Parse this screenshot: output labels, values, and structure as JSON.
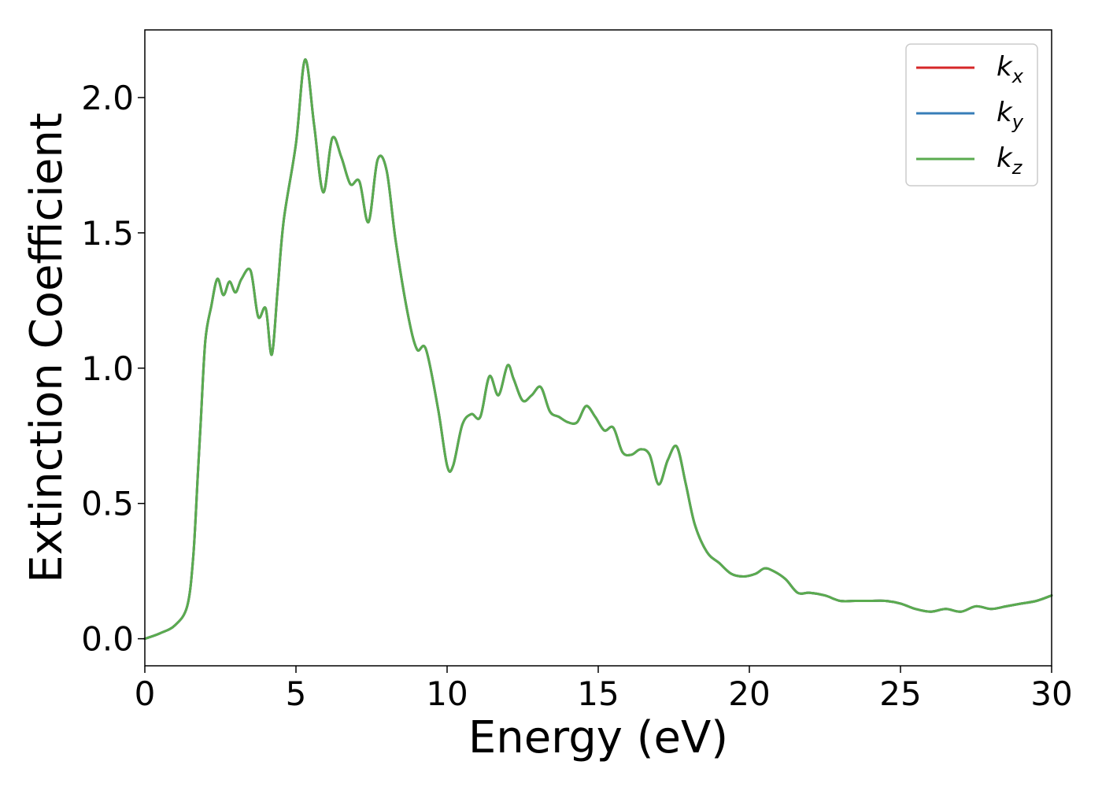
{
  "chart_data": {
    "type": "line",
    "title": "",
    "xlabel": "Energy (eV)",
    "ylabel": "Extinction Coefficient",
    "xlim": [
      0,
      30
    ],
    "ylim": [
      -0.1,
      2.25
    ],
    "xticks": [
      0,
      5,
      10,
      15,
      20,
      25,
      30
    ],
    "xtick_labels": [
      "0",
      "5",
      "10",
      "15",
      "20",
      "25",
      "30"
    ],
    "yticks": [
      0.0,
      0.5,
      1.0,
      1.5,
      2.0
    ],
    "ytick_labels": [
      "0.0",
      "0.5",
      "1.0",
      "1.5",
      "2.0"
    ],
    "grid": false,
    "legend": {
      "position": "top-right",
      "entries": [
        {
          "base": "k",
          "sub": "x",
          "color": "#d62728"
        },
        {
          "base": "k",
          "sub": "y",
          "color": "#377eb8"
        },
        {
          "base": "k",
          "sub": "z",
          "color": "#5aab4f"
        }
      ]
    },
    "x": [
      0,
      0.5,
      1.0,
      1.4,
      1.6,
      1.75,
      1.85,
      2.0,
      2.2,
      2.4,
      2.6,
      2.8,
      3.0,
      3.2,
      3.5,
      3.75,
      4.0,
      4.2,
      4.4,
      4.6,
      5.0,
      5.3,
      5.6,
      5.9,
      6.2,
      6.5,
      6.8,
      7.1,
      7.4,
      7.7,
      8.0,
      8.3,
      8.7,
      9.0,
      9.3,
      9.7,
      10.0,
      10.2,
      10.5,
      10.8,
      11.1,
      11.4,
      11.7,
      12.0,
      12.2,
      12.5,
      12.8,
      13.1,
      13.4,
      13.7,
      14.0,
      14.3,
      14.6,
      14.9,
      15.2,
      15.5,
      15.8,
      16.1,
      16.4,
      16.7,
      17.0,
      17.3,
      17.6,
      17.9,
      18.2,
      18.6,
      19.0,
      19.4,
      19.8,
      20.2,
      20.5,
      20.8,
      21.2,
      21.6,
      22.0,
      22.5,
      23.0,
      23.5,
      24.0,
      24.5,
      25.0,
      25.5,
      26.0,
      26.5,
      27.0,
      27.5,
      28.0,
      28.5,
      29.0,
      29.5,
      30.0
    ],
    "series": [
      {
        "name": "k_x",
        "values": [
          0.0,
          0.02,
          0.05,
          0.12,
          0.3,
          0.6,
          0.8,
          1.1,
          1.23,
          1.33,
          1.27,
          1.32,
          1.28,
          1.33,
          1.36,
          1.19,
          1.22,
          1.05,
          1.3,
          1.55,
          1.83,
          2.14,
          1.9,
          1.65,
          1.85,
          1.78,
          1.68,
          1.69,
          1.54,
          1.77,
          1.73,
          1.47,
          1.2,
          1.07,
          1.07,
          0.85,
          0.64,
          0.64,
          0.79,
          0.83,
          0.82,
          0.97,
          0.9,
          1.01,
          0.96,
          0.88,
          0.9,
          0.93,
          0.84,
          0.82,
          0.8,
          0.8,
          0.86,
          0.82,
          0.77,
          0.78,
          0.69,
          0.68,
          0.7,
          0.68,
          0.57,
          0.66,
          0.71,
          0.57,
          0.42,
          0.32,
          0.28,
          0.24,
          0.23,
          0.24,
          0.26,
          0.25,
          0.22,
          0.17,
          0.17,
          0.16,
          0.14,
          0.14,
          0.14,
          0.14,
          0.13,
          0.11,
          0.1,
          0.11,
          0.1,
          0.12,
          0.11,
          0.12,
          0.13,
          0.14,
          0.16
        ]
      },
      {
        "name": "k_y",
        "values": [
          0.0,
          0.02,
          0.05,
          0.12,
          0.3,
          0.6,
          0.8,
          1.1,
          1.23,
          1.33,
          1.27,
          1.32,
          1.28,
          1.33,
          1.36,
          1.19,
          1.22,
          1.05,
          1.3,
          1.55,
          1.83,
          2.14,
          1.9,
          1.65,
          1.85,
          1.78,
          1.68,
          1.69,
          1.54,
          1.77,
          1.73,
          1.47,
          1.2,
          1.07,
          1.07,
          0.85,
          0.64,
          0.64,
          0.79,
          0.83,
          0.82,
          0.97,
          0.9,
          1.01,
          0.96,
          0.88,
          0.9,
          0.93,
          0.84,
          0.82,
          0.8,
          0.8,
          0.86,
          0.82,
          0.77,
          0.78,
          0.69,
          0.68,
          0.7,
          0.68,
          0.57,
          0.66,
          0.71,
          0.57,
          0.42,
          0.32,
          0.28,
          0.24,
          0.23,
          0.24,
          0.26,
          0.25,
          0.22,
          0.17,
          0.17,
          0.16,
          0.14,
          0.14,
          0.14,
          0.14,
          0.13,
          0.11,
          0.1,
          0.11,
          0.1,
          0.12,
          0.11,
          0.12,
          0.13,
          0.14,
          0.16
        ]
      },
      {
        "name": "k_z",
        "values": [
          0.0,
          0.02,
          0.05,
          0.12,
          0.3,
          0.6,
          0.8,
          1.1,
          1.23,
          1.33,
          1.27,
          1.32,
          1.28,
          1.33,
          1.36,
          1.19,
          1.22,
          1.05,
          1.3,
          1.55,
          1.83,
          2.14,
          1.9,
          1.65,
          1.85,
          1.78,
          1.68,
          1.69,
          1.54,
          1.77,
          1.73,
          1.47,
          1.2,
          1.07,
          1.07,
          0.85,
          0.64,
          0.64,
          0.79,
          0.83,
          0.82,
          0.97,
          0.9,
          1.01,
          0.96,
          0.88,
          0.9,
          0.93,
          0.84,
          0.82,
          0.8,
          0.8,
          0.86,
          0.82,
          0.77,
          0.78,
          0.69,
          0.68,
          0.7,
          0.68,
          0.57,
          0.66,
          0.71,
          0.57,
          0.42,
          0.32,
          0.28,
          0.24,
          0.23,
          0.24,
          0.26,
          0.25,
          0.22,
          0.17,
          0.17,
          0.16,
          0.14,
          0.14,
          0.14,
          0.14,
          0.13,
          0.11,
          0.1,
          0.11,
          0.1,
          0.12,
          0.11,
          0.12,
          0.13,
          0.14,
          0.16
        ]
      }
    ]
  }
}
